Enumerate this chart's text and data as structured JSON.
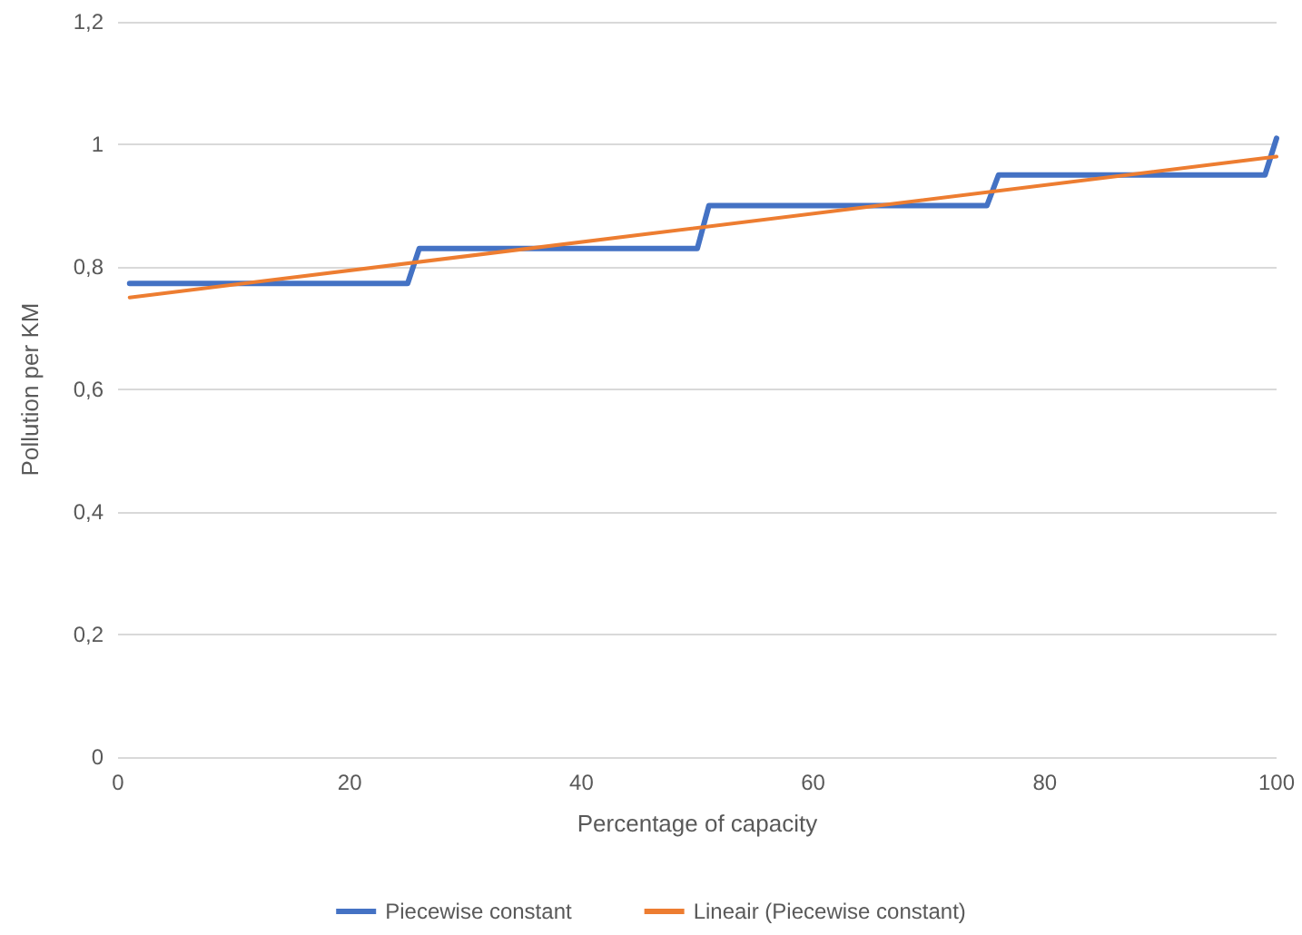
{
  "chart_data": {
    "type": "line",
    "xlabel": "Percentage of capacity",
    "ylabel": "Pollution per KM",
    "xlim": [
      0,
      100
    ],
    "xticks": [
      0,
      20,
      40,
      60,
      80,
      100
    ],
    "ylim": [
      0,
      1.2
    ],
    "yticks": [
      0,
      {
        "value": 0.2,
        "label": "0,2"
      },
      {
        "value": 0.4,
        "label": "0,4"
      },
      {
        "value": 0.6,
        "label": "0,6"
      },
      {
        "value": 0.8,
        "label": "0,8"
      },
      1,
      {
        "value": 1.2,
        "label": "1,2"
      }
    ],
    "grid": "y",
    "legend": "bottom",
    "marker": "none",
    "series": [
      {
        "name": "Piecewise constant",
        "color": "#4472c4",
        "x": [
          1,
          25,
          26,
          50,
          51,
          75,
          76,
          99,
          100
        ],
        "values": [
          0.773,
          0.773,
          0.83,
          0.83,
          0.9,
          0.9,
          0.95,
          0.95,
          1.01
        ]
      },
      {
        "name": "Lineair (Piecewise constant)",
        "color": "#ed7d31",
        "x": [
          1,
          100
        ],
        "values": [
          0.75,
          0.98
        ]
      }
    ]
  }
}
